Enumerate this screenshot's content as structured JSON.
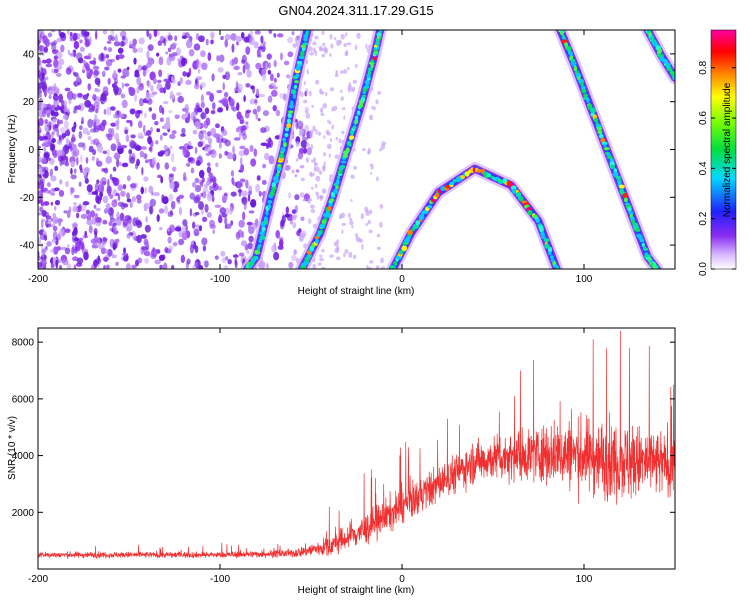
{
  "title": "GN04.2024.311.17.29.G15",
  "colors": {
    "spectrogram_noise": "#8a3cf0",
    "snr_line": "#f03030",
    "axis": "#000000"
  },
  "chart_data": [
    {
      "type": "heatmap",
      "title": "GN04.2024.311.17.29.G15",
      "xlabel": "Height of straight line (km)",
      "ylabel": "Frequency (Hz)",
      "xlim": [
        -200,
        150
      ],
      "ylim": [
        -50,
        50
      ],
      "x_ticks": [
        -200,
        -100,
        0,
        100
      ],
      "y_ticks": [
        -40,
        -20,
        0,
        20,
        40
      ],
      "colorbar": {
        "label": "Normalized spectral amplitude",
        "range": [
          0,
          0.95
        ],
        "ticks": [
          0.0,
          0.2,
          0.4,
          0.6,
          0.8
        ],
        "tick_labels": [
          "0.0",
          "0.2",
          "0.4",
          "0.6",
          "0.8"
        ],
        "colormap": "rainbow (white-violet-blue-cyan-green-yellow-red-magenta)"
      },
      "features": [
        {
          "name": "noise region",
          "x_range": [
            -200,
            -55
          ],
          "amplitude": 0.15
        },
        {
          "name": "arc A",
          "points": [
            [
              -55,
              -50
            ],
            [
              -45,
              -35
            ],
            [
              -38,
              -20
            ],
            [
              -30,
              0
            ],
            [
              -22,
              20
            ],
            [
              -15,
              40
            ],
            [
              -12,
              50
            ]
          ]
        },
        {
          "name": "arc B (steep, left)",
          "points": [
            [
              -85,
              -50
            ],
            [
              -80,
              -45
            ],
            [
              -72,
              -20
            ],
            [
              -65,
              0
            ],
            [
              -58,
              30
            ],
            [
              -52,
              50
            ]
          ]
        },
        {
          "name": "arc C (parabola)",
          "points": [
            [
              -5,
              -50
            ],
            [
              5,
              -35
            ],
            [
              20,
              -18
            ],
            [
              40,
              -8
            ],
            [
              60,
              -15
            ],
            [
              75,
              -30
            ],
            [
              85,
              -50
            ]
          ]
        },
        {
          "name": "arc D (descending)",
          "points": [
            [
              87,
              50
            ],
            [
              95,
              35
            ],
            [
              105,
              15
            ],
            [
              115,
              -5
            ],
            [
              125,
              -25
            ],
            [
              135,
              -45
            ],
            [
              140,
              -50
            ]
          ]
        },
        {
          "name": "arc E (upper right)",
          "points": [
            [
              135,
              50
            ],
            [
              142,
              40
            ],
            [
              150,
              30
            ]
          ]
        }
      ]
    },
    {
      "type": "line",
      "xlabel": "Height of straight line (km)",
      "ylabel": "SNR (10 * v/v)",
      "xlim": [
        -200,
        150
      ],
      "ylim": [
        0,
        8500
      ],
      "x_ticks": [
        -200,
        -100,
        0,
        100
      ],
      "y_ticks": [
        2000,
        4000,
        6000,
        8000
      ],
      "series": [
        {
          "trend_x": [
            -200,
            -100,
            -60,
            -40,
            -20,
            0,
            20,
            40,
            60,
            80,
            100,
            120,
            150
          ],
          "trend_mean": [
            500,
            500,
            550,
            800,
            1400,
            2200,
            3000,
            3800,
            4000,
            4100,
            4000,
            3800,
            3700
          ],
          "trend_spread": [
            150,
            150,
            200,
            500,
            800,
            900,
            900,
            1000,
            1200,
            1500,
            1800,
            2000,
            1500
          ],
          "peaks": [
            [
              -40,
              2200
            ],
            [
              -10,
              3000
            ],
            [
              25,
              5300
            ],
            [
              65,
              7000
            ],
            [
              105,
              8100
            ],
            [
              120,
              8400
            ],
            [
              125,
              7800
            ]
          ]
        }
      ]
    }
  ]
}
